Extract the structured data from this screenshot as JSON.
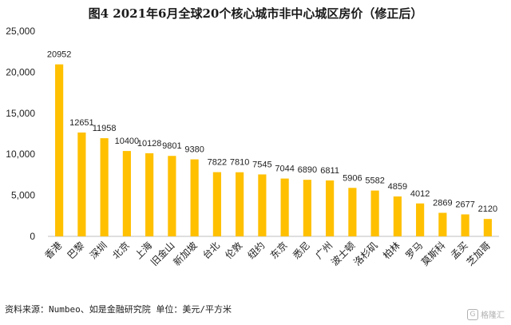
{
  "title": "图4 2021年6月全球20个核心城市非中心城区房价（修正后）",
  "source": "资料来源：Numbeo、如是金融研究院    单位：美元/平方米",
  "watermark": "格隆汇",
  "colors": {
    "bar": "#FFC000",
    "axis": "#bfbfbf",
    "text": "#222222"
  },
  "chart_data": {
    "type": "bar",
    "title": "图4 2021年6月全球20个核心城市非中心城区房价（修正后）",
    "categories": [
      "香港",
      "巴黎",
      "深圳",
      "北京",
      "上海",
      "旧金山",
      "新加坡",
      "台北",
      "伦敦",
      "纽约",
      "东京",
      "悉尼",
      "广州",
      "波士顿",
      "洛杉矶",
      "柏林",
      "罗马",
      "莫斯科",
      "孟买",
      "芝加哥"
    ],
    "values": [
      20952,
      12651,
      11958,
      10400,
      10128,
      9801,
      9380,
      7822,
      7810,
      7545,
      7044,
      6890,
      6811,
      5906,
      5582,
      4859,
      4012,
      2869,
      2677,
      2120
    ],
    "ylim": [
      0,
      25000
    ],
    "yticks": [
      "0",
      "5,000",
      "10,000",
      "15,000",
      "20,000",
      "25,000"
    ],
    "ytick_values": [
      0,
      5000,
      10000,
      15000,
      20000,
      25000
    ],
    "grid": false,
    "legend": "none",
    "data_labels": true
  }
}
